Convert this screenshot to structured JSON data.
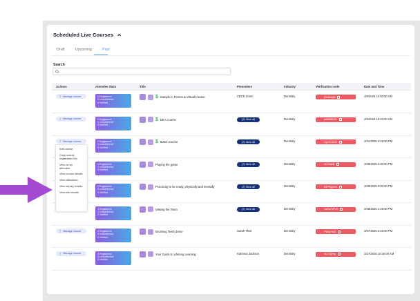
{
  "header": {
    "title": "Scheduled Live Courses"
  },
  "tabs": [
    {
      "label": "Draft",
      "active": false
    },
    {
      "label": "Upcoming",
      "active": false
    },
    {
      "label": "Past",
      "active": true
    }
  ],
  "search": {
    "label": "Search",
    "placeholder": ""
  },
  "columns": [
    "Actions",
    "Attendee Stats",
    "Title",
    "Presenters",
    "Industry",
    "Verification code",
    "Date and Time"
  ],
  "manage_label": "Manage course",
  "view_all_label": "(2) View all",
  "rows": [
    {
      "stats": [
        "0 Registered",
        "0 Unconfirmed",
        "0 Verified"
      ],
      "title": "Sample in Person & Virtual Course",
      "icon": "dollar",
      "presenter": "CECE Zoom",
      "industry": "Dentistry",
      "code": "j2n4Dsp8",
      "datetime": "4/8/2025 10:00:00 AM",
      "manage": true
    },
    {
      "stats": [
        "0 Registered",
        "0 Unconfirmed",
        "0 Verified"
      ],
      "title": "DEA Course",
      "icon": "dollar",
      "presenter": "",
      "industry": "Dentistry",
      "code": "jw8tNR0Zc",
      "datetime": "4/5/2025 10:40:00 AM",
      "manage": true
    },
    {
      "stats": [
        "2 Registered",
        "2 Unconfirmed",
        "0 Verified"
      ],
      "title": "March course",
      "icon": "dollar",
      "presenter": "",
      "industry": "Dentistry",
      "code": "UgYsL8m9",
      "datetime": "3/31/2025 3:25:00 PM",
      "manage": true
    },
    {
      "stats": [
        "1 Registered",
        "1 Unconfirmed",
        "0 Verified"
      ],
      "title": "Playing the game",
      "icon": "none",
      "presenter": "",
      "industry": "Dentistry",
      "code": "r4ZTw8B",
      "datetime": "3/28/2025 2:30:00 PM",
      "manage": false
    },
    {
      "stats": [
        "0 Registered",
        "0 Unconfirmed",
        "0 Verified"
      ],
      "title": "Practicing to be ready, physically and mentally",
      "icon": "none",
      "presenter": "",
      "industry": "Dentistry",
      "code": "b5PPgpmn",
      "datetime": "3/29/2025 2:00:00 PM",
      "manage": false
    },
    {
      "stats": [
        "1 Registered",
        "1 Unconfirmed",
        "0 Verified"
      ],
      "title": "Making the Team",
      "icon": "none",
      "presenter": "",
      "industry": "Dentistry",
      "code": "YaSeCWYE",
      "datetime": "3/28/2025 1:25:00 PM",
      "manage": false
    },
    {
      "stats": [
        "0 Registered",
        "0 Unconfirmed",
        "0 Verified"
      ],
      "title": "Brushing Teeth demo",
      "icon": "none",
      "presenter": "Sarah Thiel",
      "industry": "Dentistry",
      "code": "PWavTeI2",
      "datetime": "3/27/2025 2:18:00 PM",
      "manage": true
    },
    {
      "stats": [
        "0 Registered",
        "0 Unconfirmed",
        "0 Verified"
      ],
      "title": "Your Guide to Lifelong Learning",
      "icon": "none",
      "presenter": "Katrinna Jackson",
      "industry": "Dentistry",
      "code": "9Cr7QHtp",
      "datetime": "3/27/2025 10:30:00 AM",
      "manage": true
    }
  ],
  "dropdown": {
    "items": [
      "Edit course",
      "Copy course registration link",
      "View as an attendee",
      "View course details",
      "View attendees",
      "View survey results",
      "View test results"
    ]
  },
  "colors": {
    "accent": "#5b8def",
    "view_all": "#16307a",
    "code_badge": "#ec5b63",
    "arrow": "#a24bd0"
  }
}
